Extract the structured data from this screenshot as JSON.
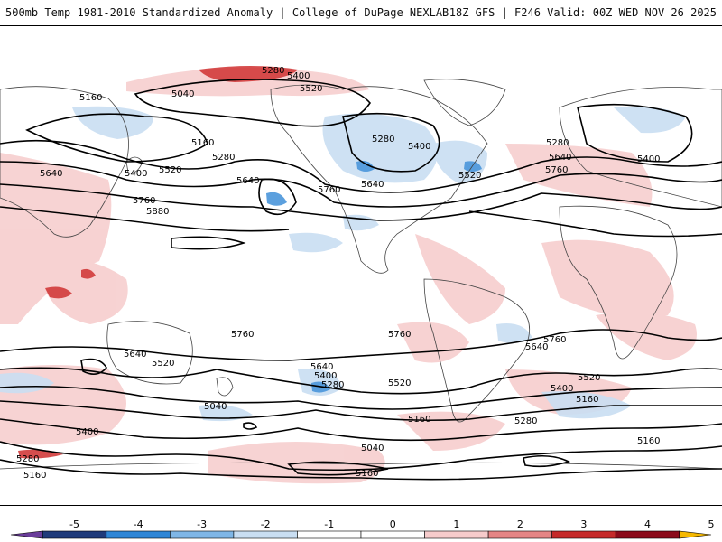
{
  "header": {
    "title": "500mb Temp 1981-2010 Standardized Anomaly | College of DuPage NEXLAB",
    "run_info": "18Z GFS | F246 Valid: 00Z WED NOV 26 2025"
  },
  "colorbar": {
    "ticks": [
      "-5",
      "-4",
      "-3",
      "-2",
      "-1",
      "0",
      "1",
      "2",
      "3",
      "4",
      "5"
    ],
    "colors": [
      "#6a3d9a",
      "#1f3a7a",
      "#2f86d6",
      "#7fb6e6",
      "#c9def2",
      "#ffffff",
      "#ffffff",
      "#f6cbcb",
      "#e48585",
      "#c52a2a",
      "#8b0a1a",
      "#f5b800"
    ]
  },
  "contour_labels": [
    "5280",
    "5400",
    "5520",
    "5160",
    "5040",
    "5160",
    "5280",
    "5640",
    "5400",
    "5520",
    "5760",
    "5880",
    "5640",
    "5760",
    "5280",
    "5400",
    "5520",
    "5640",
    "5280",
    "5640",
    "5760",
    "5400",
    "5760",
    "5640",
    "5520",
    "5760",
    "5640",
    "5400",
    "5280",
    "5520",
    "5040",
    "5160",
    "5040",
    "5160",
    "5400",
    "5280",
    "5160",
    "5640",
    "5760",
    "5520",
    "5400",
    "5160",
    "5280",
    "5160"
  ]
}
